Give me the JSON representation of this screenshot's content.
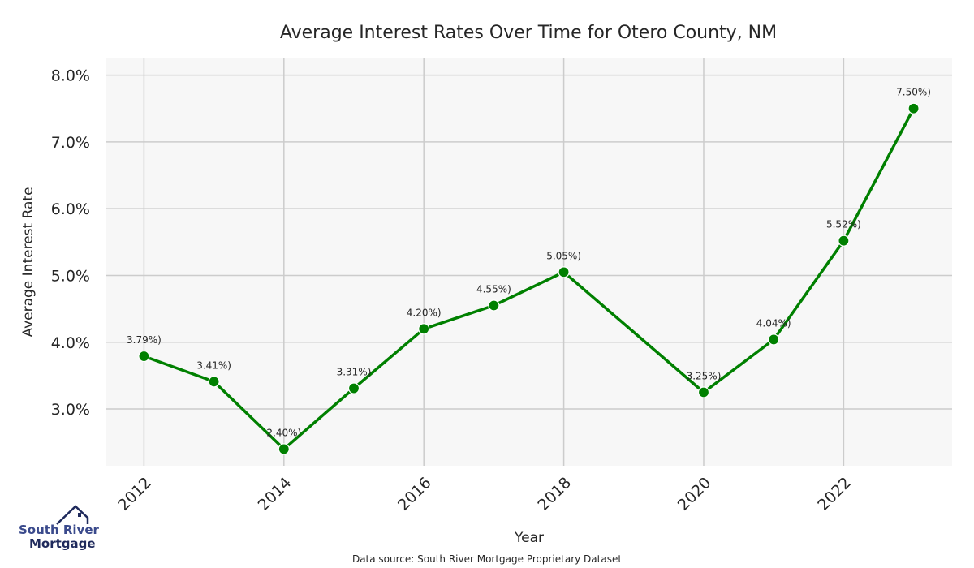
{
  "chart_data": {
    "type": "line",
    "title": "Average Interest Rates Over Time for Otero County, NM",
    "xlabel": "Year",
    "ylabel": "Average Interest Rate",
    "x": [
      2012,
      2013,
      2014,
      2015,
      2016,
      2017,
      2018,
      2020,
      2021,
      2022,
      2023
    ],
    "series": [
      {
        "values": [
          3.79,
          3.41,
          2.4,
          3.31,
          4.2,
          4.55,
          5.05,
          3.25,
          4.04,
          5.52,
          7.5
        ],
        "labels": [
          "3.79%)",
          "3.41%)",
          "2.40%)",
          "3.31%)",
          "4.20%)",
          "4.55%)",
          "5.05%)",
          "3.25%)",
          "4.04%)",
          "5.52%)",
          "7.50%)"
        ],
        "color": "#008000"
      }
    ],
    "x_ticks": [
      2012,
      2014,
      2016,
      2018,
      2020,
      2022
    ],
    "x_tick_labels": [
      "2012",
      "2014",
      "2016",
      "2018",
      "2020",
      "2022"
    ],
    "y_ticks": [
      3,
      4,
      5,
      6,
      7,
      8
    ],
    "y_tick_labels": [
      "3.0%",
      "4.0%",
      "5.0%",
      "6.0%",
      "7.0%",
      "8.0%"
    ],
    "xlim": [
      2011.45,
      2023.55
    ],
    "ylim": [
      2.15,
      8.25
    ],
    "grid": true,
    "plot_background": "#f7f7f7",
    "grid_color": "#cccccc"
  },
  "footer": {
    "source": "Data source: South River Mortgage Proprietary Dataset"
  },
  "logo": {
    "line1": "South River",
    "line2": "Mortgage",
    "color_line1": "#3a4a8c",
    "color_line2": "#1f2a5c"
  }
}
